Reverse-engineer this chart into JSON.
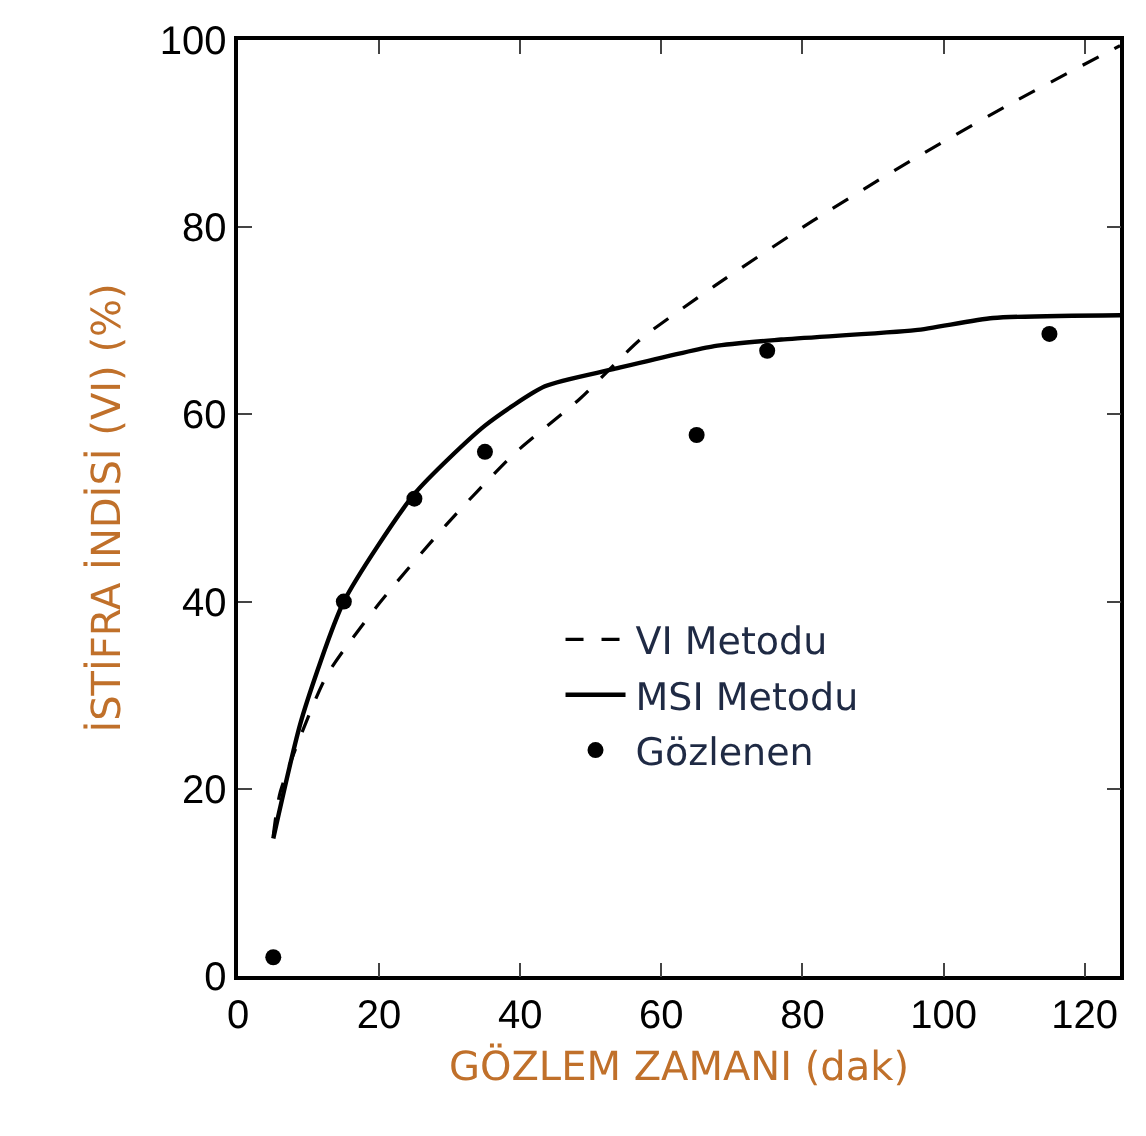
{
  "chart_data": {
    "type": "line",
    "xlabel": "GÖZLEM ZAMANI (dak)",
    "ylabel": "İSTİFRA İNDİSİ (VI) (%)",
    "xlim": [
      0,
      125
    ],
    "xticks": [
      0,
      20,
      40,
      60,
      80,
      100,
      120
    ],
    "ylim": [
      0,
      100
    ],
    "yticks": [
      0,
      20,
      40,
      60,
      80,
      100
    ],
    "grid": false,
    "legend": "right",
    "series": [
      {
        "name": "VI Metodu",
        "line_style": "dashed",
        "marker": "none",
        "color": "#000000",
        "x": [
          5,
          6,
          12.5,
          20,
          29.5,
          39,
          48.5,
          57,
          67.5,
          81.5,
          96,
          110,
          125
        ],
        "values": [
          15,
          19.7,
          32,
          39.8,
          48.2,
          55.7,
          61.7,
          68,
          73.7,
          80.7,
          87.4,
          93.4,
          99.4
        ]
      },
      {
        "name": "MSI Metodu",
        "line_style": "solid",
        "marker": "none",
        "color": "#000000",
        "x": [
          5,
          9,
          15,
          25,
          35,
          43.5,
          53,
          67.5,
          77,
          96,
          107,
          125
        ],
        "values": [
          14.7,
          27.4,
          40,
          51.5,
          58.8,
          63,
          64.8,
          67.3,
          68,
          69,
          70.3,
          70.6
        ]
      },
      {
        "name": "Gözlenen",
        "type": "scatter",
        "marker": "circle",
        "color": "#000000",
        "x": [
          5,
          15,
          25,
          35,
          65,
          75,
          115
        ],
        "values": [
          2,
          40,
          51,
          56,
          57.8,
          66.8,
          68.6
        ]
      }
    ]
  }
}
